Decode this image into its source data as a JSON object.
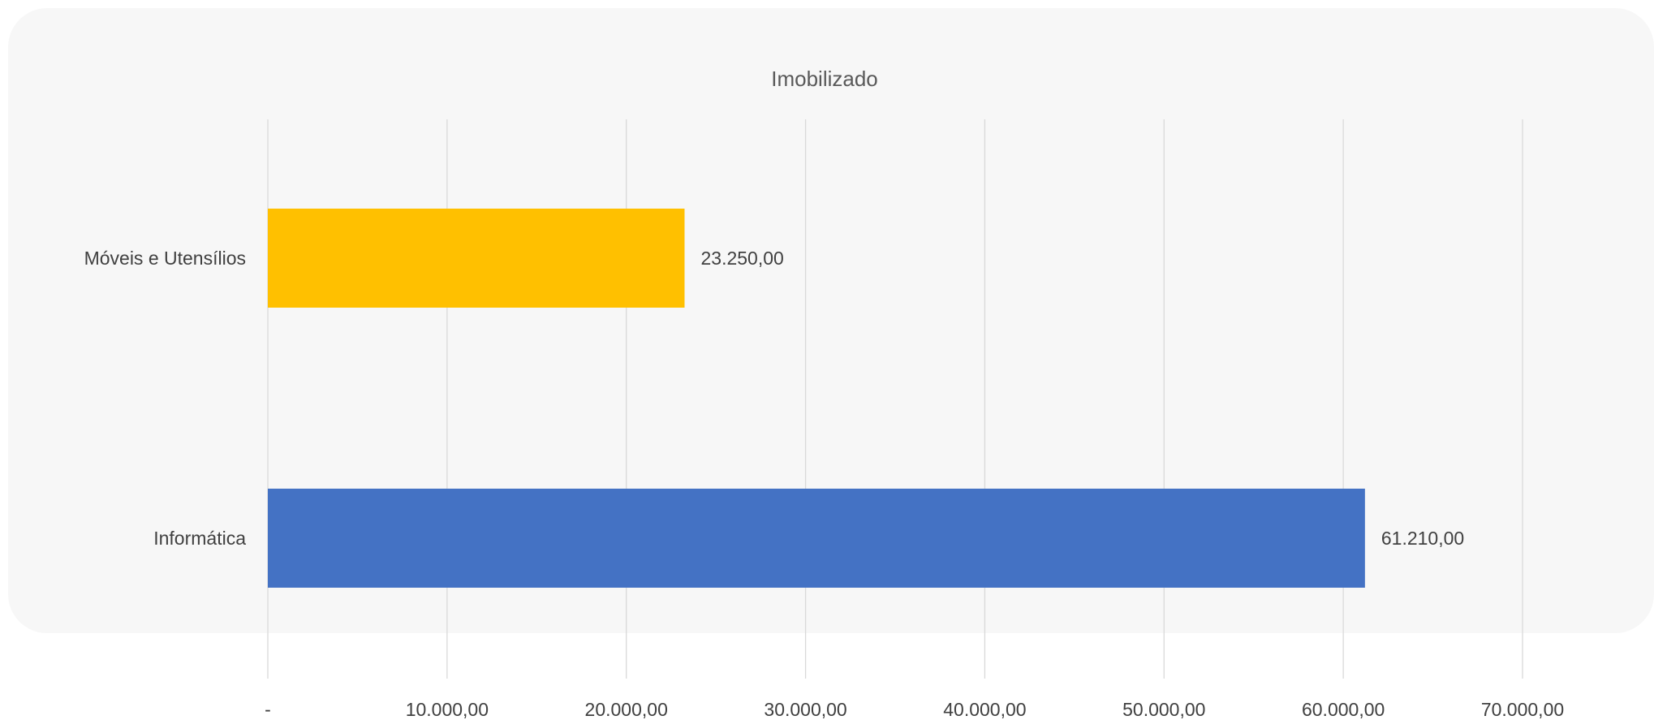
{
  "chart_data": {
    "type": "bar",
    "orientation": "horizontal",
    "title": "Imobilizado",
    "categories": [
      "Móveis e Utensílios",
      "Informática"
    ],
    "values": [
      23250,
      61210
    ],
    "value_labels": [
      "23.250,00",
      "61.210,00"
    ],
    "colors": [
      "#FFC000",
      "#4472C4"
    ],
    "xlim": [
      0,
      70000
    ],
    "x_ticks": [
      0,
      10000,
      20000,
      30000,
      40000,
      50000,
      60000,
      70000
    ],
    "x_tick_labels": [
      "-",
      "10.000,00",
      "20.000,00",
      "30.000,00",
      "40.000,00",
      "50.000,00",
      "60.000,00",
      "70.000,00"
    ],
    "xlabel": "",
    "ylabel": "",
    "grid": "vertical"
  }
}
